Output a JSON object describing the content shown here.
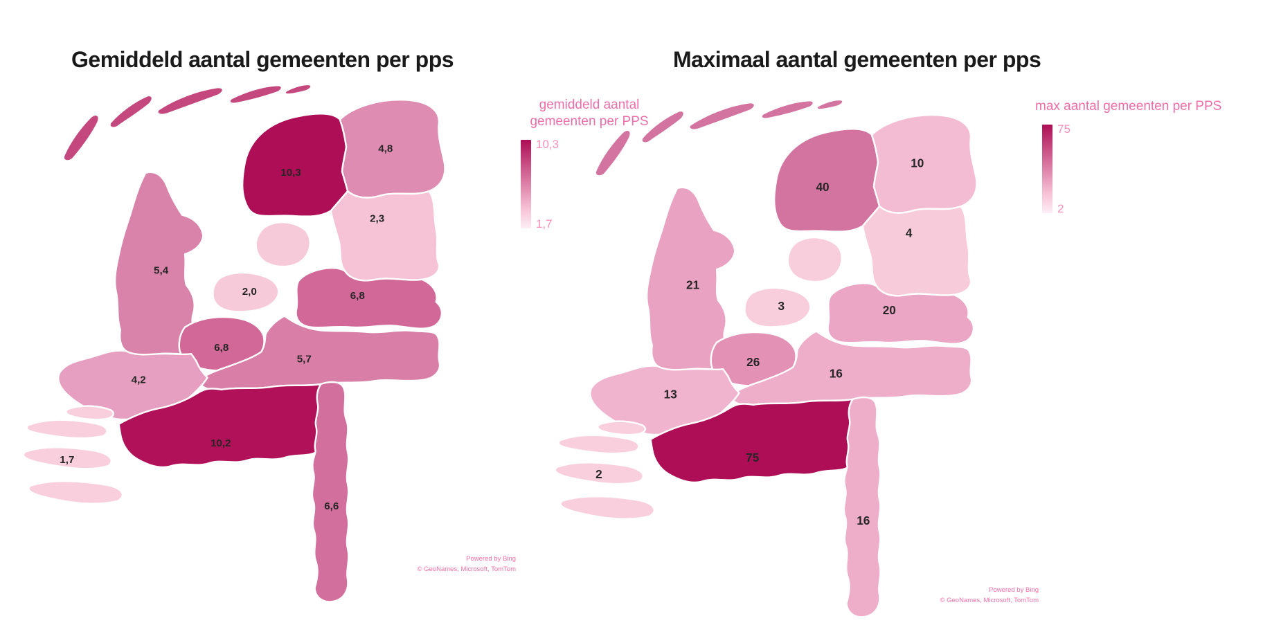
{
  "page": {
    "background": "#ffffff"
  },
  "chart_data": [
    {
      "type": "choropleth",
      "title": "Gemiddeld aantal gemeenten per pps",
      "legend": {
        "title": "gemiddeld aantal gemeenten per PPS",
        "max": "10,3",
        "min": "1,7"
      },
      "scale": {
        "domain": [
          1.7,
          10.3
        ],
        "max_color": "#ad0e55",
        "min_color": "#f9cfde"
      },
      "islands_color": "#c4487e",
      "attribution": [
        "Powered by Bing",
        "© GeoNames, Microsoft, TomTom"
      ],
      "regions": [
        {
          "name": "Friesland",
          "value": "10,3",
          "value_num": 10.3,
          "color": "#ad0e55"
        },
        {
          "name": "Groningen",
          "value": "4,8",
          "value_num": 4.8,
          "color": "#de8cb1"
        },
        {
          "name": "Drenthe",
          "value": "2,3",
          "value_num": 2.3,
          "color": "#f5c2d6"
        },
        {
          "name": "Overijssel",
          "value": "6,8",
          "value_num": 6.8,
          "color": "#d16898"
        },
        {
          "name": "Flevoland",
          "value": "2,0",
          "value_num": 2.0,
          "color": "#f7cada"
        },
        {
          "name": "Noord-Holland",
          "value": "5,4",
          "value_num": 5.4,
          "color": "#d983aa"
        },
        {
          "name": "Utrecht",
          "value": "6,8",
          "value_num": 6.8,
          "color": "#d16898"
        },
        {
          "name": "Gelderland",
          "value": "5,7",
          "value_num": 5.7,
          "color": "#d87ea7"
        },
        {
          "name": "Zuid-Holland",
          "value": "4,2",
          "value_num": 4.2,
          "color": "#e69fc0"
        },
        {
          "name": "Zeeland",
          "value": "1,7",
          "value_num": 1.7,
          "color": "#f9cfde"
        },
        {
          "name": "Noord-Brabant",
          "value": "10,2",
          "value_num": 10.2,
          "color": "#b01158"
        },
        {
          "name": "Limburg",
          "value": "6,6",
          "value_num": 6.6,
          "color": "#d36f9d"
        }
      ]
    },
    {
      "type": "choropleth",
      "title": "Maximaal aantal gemeenten per pps",
      "legend": {
        "title": "max aantal gemeenten per PPS",
        "max": "75",
        "min": "2"
      },
      "scale": {
        "domain": [
          2,
          75
        ],
        "max_color": "#ae0e55",
        "min_color": "#f9cfde"
      },
      "islands_color": "#d3739f",
      "attribution": [
        "Powered by Bing",
        "© GeoNames, Microsoft, TomTom"
      ],
      "regions": [
        {
          "name": "Friesland",
          "value": "40",
          "value_num": 40,
          "color": "#d3739f"
        },
        {
          "name": "Groningen",
          "value": "10",
          "value_num": 10,
          "color": "#f3bcd3"
        },
        {
          "name": "Drenthe",
          "value": "4",
          "value_num": 4,
          "color": "#f8cbda"
        },
        {
          "name": "Overijssel",
          "value": "20",
          "value_num": 20,
          "color": "#eaa6c4"
        },
        {
          "name": "Flevoland",
          "value": "3",
          "value_num": 3,
          "color": "#f8cddc"
        },
        {
          "name": "Noord-Holland",
          "value": "21",
          "value_num": 21,
          "color": "#e9a2c1"
        },
        {
          "name": "Utrecht",
          "value": "26",
          "value_num": 26,
          "color": "#e392b6"
        },
        {
          "name": "Gelderland",
          "value": "16",
          "value_num": 16,
          "color": "#eeadc9"
        },
        {
          "name": "Zuid-Holland",
          "value": "13",
          "value_num": 13,
          "color": "#f0b4ce"
        },
        {
          "name": "Zeeland",
          "value": "2",
          "value_num": 2,
          "color": "#f9cfde"
        },
        {
          "name": "Noord-Brabant",
          "value": "75",
          "value_num": 75,
          "color": "#ae0e55"
        },
        {
          "name": "Limburg",
          "value": "16",
          "value_num": 16,
          "color": "#eeadc9"
        }
      ]
    }
  ]
}
